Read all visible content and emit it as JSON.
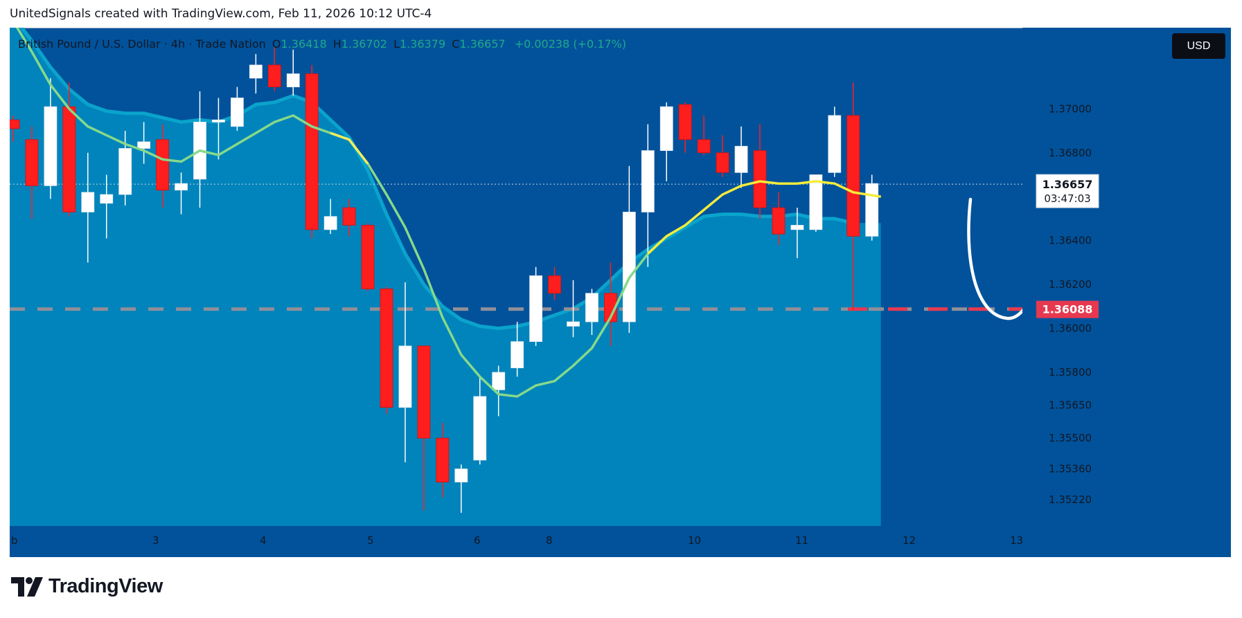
{
  "header": {
    "attribution": "UnitedSignals created with TradingView.com, Feb 11, 2026 10:12 UTC-4"
  },
  "legend": {
    "symbol": "British Pound / U.S. Dollar · 4h · Trade Nation",
    "o_label": "O",
    "o": "1.36418",
    "h_label": "H",
    "h": "1.36702",
    "l_label": "L",
    "l": "1.36379",
    "c_label": "C",
    "c": "1.36657",
    "change": "+0.00238 (+0.17%)"
  },
  "currency_button": "USD",
  "brand": {
    "wordmark": "TradingView"
  },
  "chart_data": {
    "type": "candlestick",
    "ylim": [
      1.351,
      1.3737
    ],
    "y_ticks": [
      "1.37000",
      "1.36800",
      "1.36400",
      "1.36200",
      "1.36000",
      "1.35800",
      "1.35650",
      "1.35500",
      "1.35360",
      "1.35220"
    ],
    "x_ticks": [
      "b",
      "3",
      "4",
      "5",
      "6",
      "8",
      "10",
      "11",
      "12",
      "13"
    ],
    "candles": [
      {
        "o": 1.3695,
        "h": 1.3697,
        "l": 1.3685,
        "c": 1.3691
      },
      {
        "o": 1.3686,
        "h": 1.3692,
        "l": 1.365,
        "c": 1.3665
      },
      {
        "o": 1.3665,
        "h": 1.3714,
        "l": 1.3659,
        "c": 1.3701
      },
      {
        "o": 1.3701,
        "h": 1.3712,
        "l": 1.3651,
        "c": 1.3653
      },
      {
        "o": 1.3653,
        "h": 1.368,
        "l": 1.363,
        "c": 1.3662
      },
      {
        "o": 1.3657,
        "h": 1.367,
        "l": 1.3641,
        "c": 1.3661
      },
      {
        "o": 1.3661,
        "h": 1.369,
        "l": 1.3656,
        "c": 1.3682
      },
      {
        "o": 1.3682,
        "h": 1.3694,
        "l": 1.3675,
        "c": 1.3685
      },
      {
        "o": 1.3686,
        "h": 1.3693,
        "l": 1.3655,
        "c": 1.3663
      },
      {
        "o": 1.3663,
        "h": 1.3671,
        "l": 1.3652,
        "c": 1.3666
      },
      {
        "o": 1.3668,
        "h": 1.3708,
        "l": 1.3655,
        "c": 1.3694
      },
      {
        "o": 1.3694,
        "h": 1.3705,
        "l": 1.3677,
        "c": 1.3695
      },
      {
        "o": 1.3692,
        "h": 1.371,
        "l": 1.369,
        "c": 1.3705
      },
      {
        "o": 1.3714,
        "h": 1.3725,
        "l": 1.3707,
        "c": 1.372
      },
      {
        "o": 1.372,
        "h": 1.3728,
        "l": 1.3708,
        "c": 1.371
      },
      {
        "o": 1.371,
        "h": 1.3727,
        "l": 1.3706,
        "c": 1.3716
      },
      {
        "o": 1.3716,
        "h": 1.372,
        "l": 1.3641,
        "c": 1.3645
      },
      {
        "o": 1.3645,
        "h": 1.3659,
        "l": 1.3643,
        "c": 1.3651
      },
      {
        "o": 1.3655,
        "h": 1.3659,
        "l": 1.3642,
        "c": 1.3647
      },
      {
        "o": 1.3647,
        "h": 1.3648,
        "l": 1.3617,
        "c": 1.3618
      },
      {
        "o": 1.3618,
        "h": 1.3619,
        "l": 1.3561,
        "c": 1.3564
      },
      {
        "o": 1.3564,
        "h": 1.3621,
        "l": 1.3539,
        "c": 1.3592
      },
      {
        "o": 1.3592,
        "h": 1.3592,
        "l": 1.3517,
        "c": 1.355
      },
      {
        "o": 1.355,
        "h": 1.3557,
        "l": 1.3523,
        "c": 1.353
      },
      {
        "o": 1.353,
        "h": 1.3538,
        "l": 1.3516,
        "c": 1.3536
      },
      {
        "o": 1.354,
        "h": 1.3578,
        "l": 1.3538,
        "c": 1.3569
      },
      {
        "o": 1.3572,
        "h": 1.3583,
        "l": 1.356,
        "c": 1.358
      },
      {
        "o": 1.3582,
        "h": 1.3603,
        "l": 1.3578,
        "c": 1.3594
      },
      {
        "o": 1.3594,
        "h": 1.3628,
        "l": 1.3592,
        "c": 1.3624
      },
      {
        "o": 1.3624,
        "h": 1.3628,
        "l": 1.3613,
        "c": 1.3616
      },
      {
        "o": 1.3601,
        "h": 1.3622,
        "l": 1.3596,
        "c": 1.3603
      },
      {
        "o": 1.3603,
        "h": 1.3618,
        "l": 1.3597,
        "c": 1.3616
      },
      {
        "o": 1.3616,
        "h": 1.363,
        "l": 1.3592,
        "c": 1.3603
      },
      {
        "o": 1.3603,
        "h": 1.3674,
        "l": 1.3598,
        "c": 1.3653
      },
      {
        "o": 1.3653,
        "h": 1.3693,
        "l": 1.3628,
        "c": 1.3681
      },
      {
        "o": 1.3681,
        "h": 1.3703,
        "l": 1.3667,
        "c": 1.3701
      },
      {
        "o": 1.3702,
        "h": 1.3703,
        "l": 1.368,
        "c": 1.3686
      },
      {
        "o": 1.3686,
        "h": 1.3697,
        "l": 1.3679,
        "c": 1.368
      },
      {
        "o": 1.368,
        "h": 1.3688,
        "l": 1.3669,
        "c": 1.3671
      },
      {
        "o": 1.3671,
        "h": 1.3692,
        "l": 1.3664,
        "c": 1.3683
      },
      {
        "o": 1.3681,
        "h": 1.3693,
        "l": 1.365,
        "c": 1.3655
      },
      {
        "o": 1.3655,
        "h": 1.3662,
        "l": 1.3638,
        "c": 1.3643
      },
      {
        "o": 1.3645,
        "h": 1.3655,
        "l": 1.3632,
        "c": 1.3647
      },
      {
        "o": 1.3645,
        "h": 1.367,
        "l": 1.3644,
        "c": 1.367
      },
      {
        "o": 1.3671,
        "h": 1.3701,
        "l": 1.3669,
        "c": 1.3697
      },
      {
        "o": 1.3697,
        "h": 1.3712,
        "l": 1.3608,
        "c": 1.3642
      },
      {
        "o": 1.3642,
        "h": 1.367,
        "l": 1.364,
        "c": 1.3666
      }
    ],
    "indicators": [
      {
        "type": "moving-average",
        "values": [
          1.374,
          1.3726,
          1.3711,
          1.37,
          1.3692,
          1.3688,
          1.3684,
          1.3681,
          1.3677,
          1.3676,
          1.3681,
          1.3679,
          1.3684,
          1.3689,
          1.3694,
          1.3697,
          1.3692,
          1.3689,
          1.3686,
          1.3675,
          1.3661,
          1.3646,
          1.3627,
          1.3605,
          1.3588,
          1.3578,
          1.357,
          1.3569,
          1.3574,
          1.3576,
          1.3583,
          1.3591,
          1.3605,
          1.3623,
          1.3634,
          1.3642,
          1.3647,
          1.3654,
          1.3661,
          1.3665,
          1.3667,
          1.3666,
          1.3666,
          1.3667,
          1.3666,
          1.3662
        ]
      },
      {
        "type": "moving-average",
        "values": [
          1.3742,
          1.3731,
          1.3719,
          1.3709,
          1.3702,
          1.3699,
          1.3698,
          1.3698,
          1.3696,
          1.3694,
          1.3695,
          1.3694,
          1.3697,
          1.3702,
          1.3703,
          1.3706,
          1.3703,
          1.3695,
          1.3687,
          1.3672,
          1.3652,
          1.3634,
          1.362,
          1.361,
          1.3604,
          1.3601,
          1.36,
          1.3601,
          1.3603,
          1.3606,
          1.3609,
          1.3614,
          1.3622,
          1.363,
          1.3636,
          1.3641,
          1.3646,
          1.3651,
          1.3652,
          1.3652,
          1.3651,
          1.3651,
          1.3652,
          1.365,
          1.365,
          1.3648
        ]
      }
    ],
    "current_price": {
      "value": "1.36657",
      "countdown": "03:47:03"
    },
    "target": {
      "value": "1.36088",
      "annotation": "1.3608"
    }
  }
}
